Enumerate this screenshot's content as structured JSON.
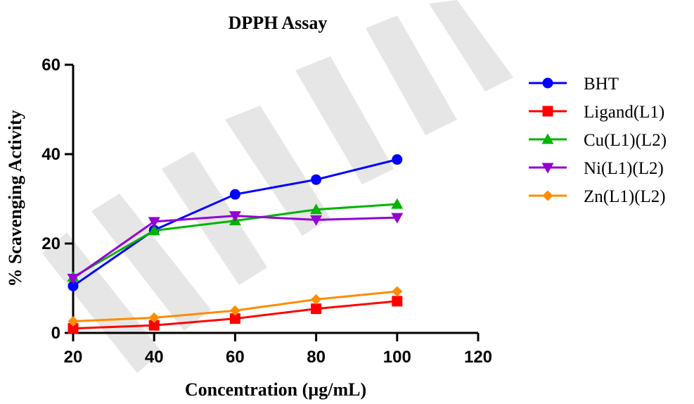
{
  "chart_data": {
    "type": "line",
    "title": "DPPH Assay",
    "xlabel": "Concentration (µg/mL)",
    "ylabel": "% Scavenging Activity",
    "xlim": [
      20,
      120
    ],
    "ylim": [
      0,
      60
    ],
    "xticks": [
      20,
      40,
      60,
      80,
      100,
      120
    ],
    "yticks": [
      0,
      20,
      40,
      60
    ],
    "x": [
      20,
      40,
      60,
      80,
      100
    ],
    "grid": false,
    "legend_position": "right",
    "series": [
      {
        "name": "BHT",
        "color": "#0000ff",
        "marker": "circle",
        "values": [
          10.5,
          23.0,
          31.0,
          34.3,
          38.8
        ]
      },
      {
        "name": "Ligand(L1)",
        "color": "#ff0000",
        "marker": "square",
        "values": [
          1.0,
          1.7,
          3.2,
          5.4,
          7.1
        ]
      },
      {
        "name": "Cu(L1)(L2)",
        "color": "#00b400",
        "marker": "triangle-up",
        "values": [
          12.5,
          22.9,
          25.1,
          27.6,
          28.8
        ]
      },
      {
        "name": "Ni(L1)(L2)",
        "color": "#9400d3",
        "marker": "triangle-down",
        "values": [
          12.2,
          24.9,
          26.2,
          25.3,
          25.8
        ]
      },
      {
        "name": "Zn(L1)(L2)",
        "color": "#ff8c00",
        "marker": "diamond",
        "values": [
          2.6,
          3.4,
          5.0,
          7.5,
          9.3
        ]
      }
    ]
  }
}
